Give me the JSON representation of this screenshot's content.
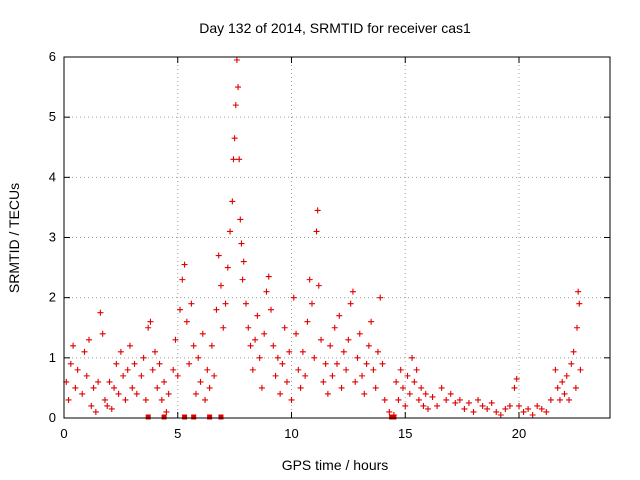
{
  "chart_data": {
    "type": "scatter",
    "title": "Day 132 of 2014, SRMTID for receiver cas1",
    "xlabel": "GPS time / hours",
    "ylabel": "SRMTID / TECUs",
    "xlim": [
      0,
      24
    ],
    "ylim": [
      0,
      6
    ],
    "x_ticks": [
      0,
      5,
      10,
      15,
      20
    ],
    "y_ticks": [
      0,
      1,
      2,
      3,
      4,
      5,
      6
    ],
    "grid": true,
    "marker": "plus",
    "color": "#e00000",
    "series": [
      {
        "name": "SRMTID",
        "points": [
          [
            0.1,
            0.6
          ],
          [
            0.2,
            0.3
          ],
          [
            0.3,
            0.9
          ],
          [
            0.4,
            1.2
          ],
          [
            0.5,
            0.5
          ],
          [
            0.6,
            0.8
          ],
          [
            0.8,
            0.4
          ],
          [
            0.9,
            1.1
          ],
          [
            1.0,
            0.7
          ],
          [
            1.1,
            1.3
          ],
          [
            1.2,
            0.2
          ],
          [
            1.3,
            0.5
          ],
          [
            1.4,
            0.1
          ],
          [
            1.5,
            0.6
          ],
          [
            1.6,
            1.75
          ],
          [
            1.7,
            1.4
          ],
          [
            1.8,
            0.3
          ],
          [
            1.9,
            0.2
          ],
          [
            2.0,
            0.6
          ],
          [
            2.1,
            0.15
          ],
          [
            2.2,
            0.5
          ],
          [
            2.3,
            0.9
          ],
          [
            2.4,
            0.4
          ],
          [
            2.5,
            1.1
          ],
          [
            2.6,
            0.7
          ],
          [
            2.7,
            0.3
          ],
          [
            2.8,
            0.8
          ],
          [
            2.9,
            1.2
          ],
          [
            3.0,
            0.5
          ],
          [
            3.1,
            0.9
          ],
          [
            3.2,
            0.4
          ],
          [
            3.4,
            0.7
          ],
          [
            3.5,
            1.0
          ],
          [
            3.6,
            0.3
          ],
          [
            3.7,
            1.5
          ],
          [
            3.8,
            1.6
          ],
          [
            3.9,
            0.8
          ],
          [
            4.0,
            1.1
          ],
          [
            4.1,
            0.5
          ],
          [
            4.2,
            0.9
          ],
          [
            4.3,
            0.3
          ],
          [
            4.4,
            0.6
          ],
          [
            4.5,
            0.1
          ],
          [
            4.6,
            0.4
          ],
          [
            4.8,
            0.8
          ],
          [
            4.9,
            1.3
          ],
          [
            5.0,
            0.7
          ],
          [
            5.1,
            1.8
          ],
          [
            5.2,
            2.3
          ],
          [
            5.3,
            2.55
          ],
          [
            5.4,
            1.6
          ],
          [
            5.5,
            0.9
          ],
          [
            5.6,
            1.9
          ],
          [
            5.7,
            1.2
          ],
          [
            5.8,
            0.4
          ],
          [
            5.9,
            1.0
          ],
          [
            6.0,
            0.6
          ],
          [
            6.1,
            1.4
          ],
          [
            6.2,
            0.3
          ],
          [
            6.3,
            0.8
          ],
          [
            6.4,
            0.5
          ],
          [
            6.5,
            1.2
          ],
          [
            6.6,
            0.7
          ],
          [
            6.7,
            1.8
          ],
          [
            6.8,
            2.7
          ],
          [
            6.9,
            2.2
          ],
          [
            7.0,
            1.5
          ],
          [
            7.1,
            1.9
          ],
          [
            7.2,
            2.5
          ],
          [
            7.3,
            3.1
          ],
          [
            7.4,
            3.6
          ],
          [
            7.45,
            4.3
          ],
          [
            7.5,
            4.65
          ],
          [
            7.55,
            5.2
          ],
          [
            7.6,
            5.95
          ],
          [
            7.65,
            5.5
          ],
          [
            7.7,
            4.3
          ],
          [
            7.75,
            3.3
          ],
          [
            7.8,
            2.9
          ],
          [
            7.85,
            2.3
          ],
          [
            7.9,
            2.6
          ],
          [
            8.0,
            1.9
          ],
          [
            8.1,
            1.5
          ],
          [
            8.2,
            1.2
          ],
          [
            8.3,
            0.8
          ],
          [
            8.4,
            1.3
          ],
          [
            8.5,
            1.7
          ],
          [
            8.6,
            1.0
          ],
          [
            8.7,
            0.5
          ],
          [
            8.8,
            1.4
          ],
          [
            8.9,
            2.1
          ],
          [
            9.0,
            2.35
          ],
          [
            9.1,
            1.8
          ],
          [
            9.2,
            1.2
          ],
          [
            9.3,
            0.7
          ],
          [
            9.4,
            1.0
          ],
          [
            9.5,
            0.4
          ],
          [
            9.6,
            0.9
          ],
          [
            9.7,
            1.5
          ],
          [
            9.8,
            0.6
          ],
          [
            9.9,
            1.1
          ],
          [
            10.0,
            0.3
          ],
          [
            10.1,
            2.0
          ],
          [
            10.2,
            1.4
          ],
          [
            10.3,
            0.8
          ],
          [
            10.4,
            0.5
          ],
          [
            10.5,
            1.1
          ],
          [
            10.6,
            0.7
          ],
          [
            10.7,
            1.6
          ],
          [
            10.8,
            2.3
          ],
          [
            10.9,
            1.9
          ],
          [
            11.0,
            1.0
          ],
          [
            11.1,
            3.1
          ],
          [
            11.15,
            3.45
          ],
          [
            11.2,
            2.2
          ],
          [
            11.3,
            1.3
          ],
          [
            11.4,
            0.6
          ],
          [
            11.5,
            0.9
          ],
          [
            11.6,
            0.4
          ],
          [
            11.7,
            1.2
          ],
          [
            11.8,
            0.7
          ],
          [
            11.9,
            1.5
          ],
          [
            12.0,
            0.9
          ],
          [
            12.1,
            1.7
          ],
          [
            12.2,
            0.5
          ],
          [
            12.3,
            1.1
          ],
          [
            12.4,
            0.8
          ],
          [
            12.5,
            1.3
          ],
          [
            12.6,
            1.9
          ],
          [
            12.7,
            2.1
          ],
          [
            12.8,
            0.6
          ],
          [
            12.9,
            1.0
          ],
          [
            13.0,
            1.4
          ],
          [
            13.1,
            0.7
          ],
          [
            13.2,
            0.4
          ],
          [
            13.3,
            0.9
          ],
          [
            13.4,
            1.2
          ],
          [
            13.5,
            1.6
          ],
          [
            13.6,
            0.8
          ],
          [
            13.7,
            0.5
          ],
          [
            13.8,
            1.1
          ],
          [
            13.9,
            2.0
          ],
          [
            14.0,
            0.9
          ],
          [
            14.1,
            0.3
          ],
          [
            14.3,
            0.1
          ],
          [
            14.5,
            0.05
          ],
          [
            14.6,
            0.6
          ],
          [
            14.7,
            0.3
          ],
          [
            14.8,
            0.8
          ],
          [
            14.9,
            0.5
          ],
          [
            15.0,
            0.2
          ],
          [
            15.1,
            0.7
          ],
          [
            15.2,
            0.4
          ],
          [
            15.3,
            1.0
          ],
          [
            15.4,
            0.6
          ],
          [
            15.5,
            0.8
          ],
          [
            15.6,
            0.3
          ],
          [
            15.7,
            0.5
          ],
          [
            15.8,
            0.2
          ],
          [
            15.9,
            0.4
          ],
          [
            16.0,
            0.15
          ],
          [
            16.2,
            0.35
          ],
          [
            16.4,
            0.2
          ],
          [
            16.6,
            0.5
          ],
          [
            16.8,
            0.3
          ],
          [
            17.0,
            0.4
          ],
          [
            17.2,
            0.25
          ],
          [
            17.4,
            0.3
          ],
          [
            17.6,
            0.15
          ],
          [
            17.8,
            0.25
          ],
          [
            18.0,
            0.1
          ],
          [
            18.2,
            0.3
          ],
          [
            18.4,
            0.2
          ],
          [
            18.6,
            0.15
          ],
          [
            18.8,
            0.25
          ],
          [
            19.0,
            0.1
          ],
          [
            19.2,
            0.05
          ],
          [
            19.4,
            0.15
          ],
          [
            19.6,
            0.2
          ],
          [
            19.8,
            0.5
          ],
          [
            19.9,
            0.65
          ],
          [
            20.0,
            0.2
          ],
          [
            20.2,
            0.1
          ],
          [
            20.4,
            0.15
          ],
          [
            20.6,
            0.05
          ],
          [
            20.8,
            0.2
          ],
          [
            21.0,
            0.15
          ],
          [
            21.2,
            0.1
          ],
          [
            21.4,
            0.3
          ],
          [
            21.6,
            0.8
          ],
          [
            21.7,
            0.5
          ],
          [
            21.8,
            0.3
          ],
          [
            21.9,
            0.6
          ],
          [
            22.0,
            0.4
          ],
          [
            22.1,
            0.7
          ],
          [
            22.2,
            0.3
          ],
          [
            22.3,
            0.9
          ],
          [
            22.4,
            1.1
          ],
          [
            22.5,
            0.5
          ],
          [
            22.55,
            1.5
          ],
          [
            22.6,
            2.1
          ],
          [
            22.65,
            1.9
          ],
          [
            22.7,
            0.8
          ]
        ]
      }
    ],
    "zero_markers": [
      3.7,
      4.4,
      5.3,
      5.7,
      6.4,
      6.9,
      14.4,
      14.5
    ]
  }
}
